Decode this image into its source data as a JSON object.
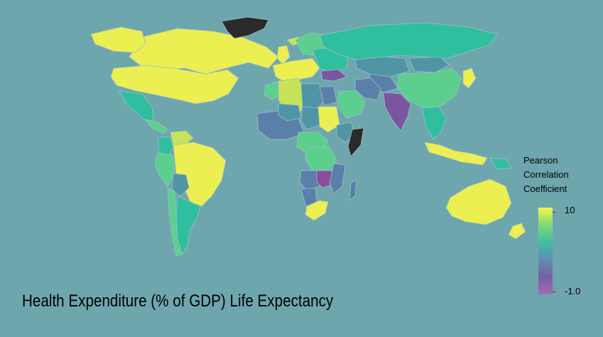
{
  "title": "Health Expenditure (% of GDP) Life Expectancy",
  "legend": {
    "title": "Pearson\nCorrelation\nCoefficient",
    "max_label": "10",
    "min_label": "-1.0",
    "colors": [
      "#f5f44a",
      "#7fd97a",
      "#3fbfa0",
      "#5e8fb0",
      "#7a5fa6",
      "#a06cae"
    ]
  },
  "colors": {
    "ocean": "#6ea6ae",
    "no_data": "#2b2b2b",
    "yellow": "#ebef52",
    "lime": "#c7e35a",
    "green": "#5ccf8e",
    "teal": "#2fbf9f",
    "steel": "#4f95a6",
    "blue": "#5a7fa9",
    "purple": "#7a55a0",
    "magenta": "#8e4a9c"
  },
  "regions": [
    {
      "name": "Canada",
      "color": "yellow"
    },
    {
      "name": "Alaska",
      "color": "yellow"
    },
    {
      "name": "USA",
      "color": "yellow"
    },
    {
      "name": "Greenland",
      "color": "no_data"
    },
    {
      "name": "Mexico",
      "color": "teal"
    },
    {
      "name": "Central America",
      "color": "green"
    },
    {
      "name": "Colombia",
      "color": "teal"
    },
    {
      "name": "Venezuela",
      "color": "lime"
    },
    {
      "name": "Peru",
      "color": "green"
    },
    {
      "name": "Brazil",
      "color": "yellow"
    },
    {
      "name": "Bolivia",
      "color": "steel"
    },
    {
      "name": "Argentina",
      "color": "teal"
    },
    {
      "name": "Chile",
      "color": "green"
    },
    {
      "name": "Iceland",
      "color": "lime"
    },
    {
      "name": "UK",
      "color": "yellow"
    },
    {
      "name": "Western Europe",
      "color": "yellow"
    },
    {
      "name": "Scandinavia",
      "color": "green"
    },
    {
      "name": "Eastern Europe",
      "color": "teal"
    },
    {
      "name": "Russia",
      "color": "teal"
    },
    {
      "name": "Kazakhstan",
      "color": "steel"
    },
    {
      "name": "Central Asia",
      "color": "blue"
    },
    {
      "name": "Mongolia",
      "color": "steel"
    },
    {
      "name": "China",
      "color": "green"
    },
    {
      "name": "India",
      "color": "purple"
    },
    {
      "name": "Iran",
      "color": "blue"
    },
    {
      "name": "Turkey",
      "color": "purple"
    },
    {
      "name": "Saudi Arabia",
      "color": "green"
    },
    {
      "name": "Southeast Asia",
      "color": "teal"
    },
    {
      "name": "Japan",
      "color": "yellow"
    },
    {
      "name": "Indonesia",
      "color": "yellow"
    },
    {
      "name": "Papua New Guinea",
      "color": "teal"
    },
    {
      "name": "Australia",
      "color": "yellow"
    },
    {
      "name": "New Zealand",
      "color": "yellow"
    },
    {
      "name": "Morocco",
      "color": "green"
    },
    {
      "name": "Algeria",
      "color": "lime"
    },
    {
      "name": "Libya",
      "color": "steel"
    },
    {
      "name": "Egypt",
      "color": "blue"
    },
    {
      "name": "West Africa",
      "color": "blue"
    },
    {
      "name": "Mali",
      "color": "steel"
    },
    {
      "name": "Chad",
      "color": "steel"
    },
    {
      "name": "Sudan",
      "color": "yellow"
    },
    {
      "name": "Ethiopia",
      "color": "steel"
    },
    {
      "name": "Somalia",
      "color": "no_data"
    },
    {
      "name": "Central Africa",
      "color": "green"
    },
    {
      "name": "DR Congo",
      "color": "green"
    },
    {
      "name": "Angola",
      "color": "blue"
    },
    {
      "name": "Zambia",
      "color": "magenta"
    },
    {
      "name": "Mozambique",
      "color": "blue"
    },
    {
      "name": "Madagascar",
      "color": "blue"
    },
    {
      "name": "Namibia",
      "color": "blue"
    },
    {
      "name": "South Africa",
      "color": "yellow"
    }
  ]
}
